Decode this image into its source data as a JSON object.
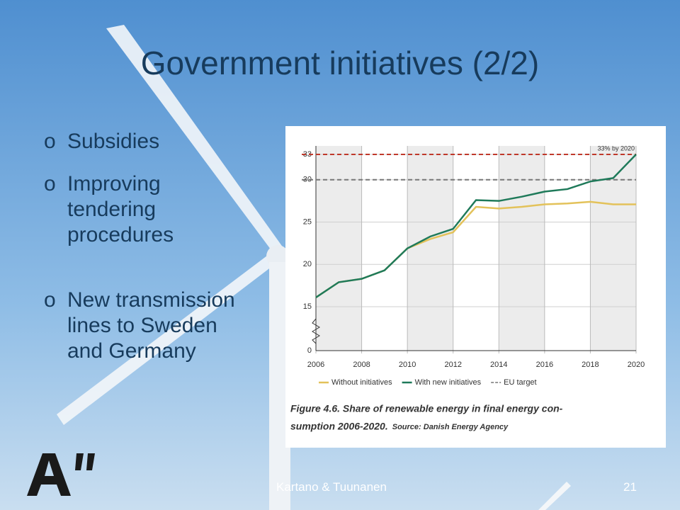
{
  "slide": {
    "title": "Government initiatives (2/2)",
    "bullets": [
      [
        "Subsidies"
      ],
      [
        "Improving",
        "tendering",
        "procedures"
      ],
      [
        "New transmission",
        "lines to Sweden",
        "and Germany"
      ]
    ],
    "footer": "Kartano & Tuunanen",
    "page": "21"
  },
  "chart_data": {
    "type": "line",
    "x": [
      2006,
      2007,
      2008,
      2009,
      2010,
      2011,
      2012,
      2013,
      2014,
      2015,
      2016,
      2017,
      2018,
      2019,
      2020
    ],
    "series": [
      {
        "name": "Without initiatives",
        "color": "#e3c25a",
        "values": [
          16.1,
          17.9,
          18.3,
          19.3,
          21.9,
          23.0,
          23.8,
          26.8,
          26.6,
          26.8,
          27.1,
          27.2,
          27.4,
          27.1,
          27.1
        ]
      },
      {
        "name": "With new initiatives",
        "color": "#1f7a5a",
        "values": [
          16.1,
          17.9,
          18.3,
          19.3,
          21.9,
          23.3,
          24.2,
          27.6,
          27.5,
          28.0,
          28.6,
          28.9,
          29.8,
          30.2,
          33
        ]
      }
    ],
    "reference_lines": [
      {
        "name": "EU target",
        "value": 30,
        "color": "#777777"
      },
      {
        "label": "33% by 2020",
        "value": 33,
        "color": "#c0392b"
      }
    ],
    "xlim": [
      2006,
      2020
    ],
    "xticks": [
      2006,
      2008,
      2010,
      2012,
      2014,
      2016,
      2018,
      2020
    ],
    "ylim": [
      0,
      34
    ],
    "y_break": [
      0,
      14
    ],
    "yticks": [
      0,
      15,
      20,
      25,
      30,
      33
    ],
    "caption": [
      "Figure 4.6. Share of renewable energy in final energy con-",
      "sumption 2006-2020."
    ],
    "source": "Source: Danish Energy Agency"
  }
}
